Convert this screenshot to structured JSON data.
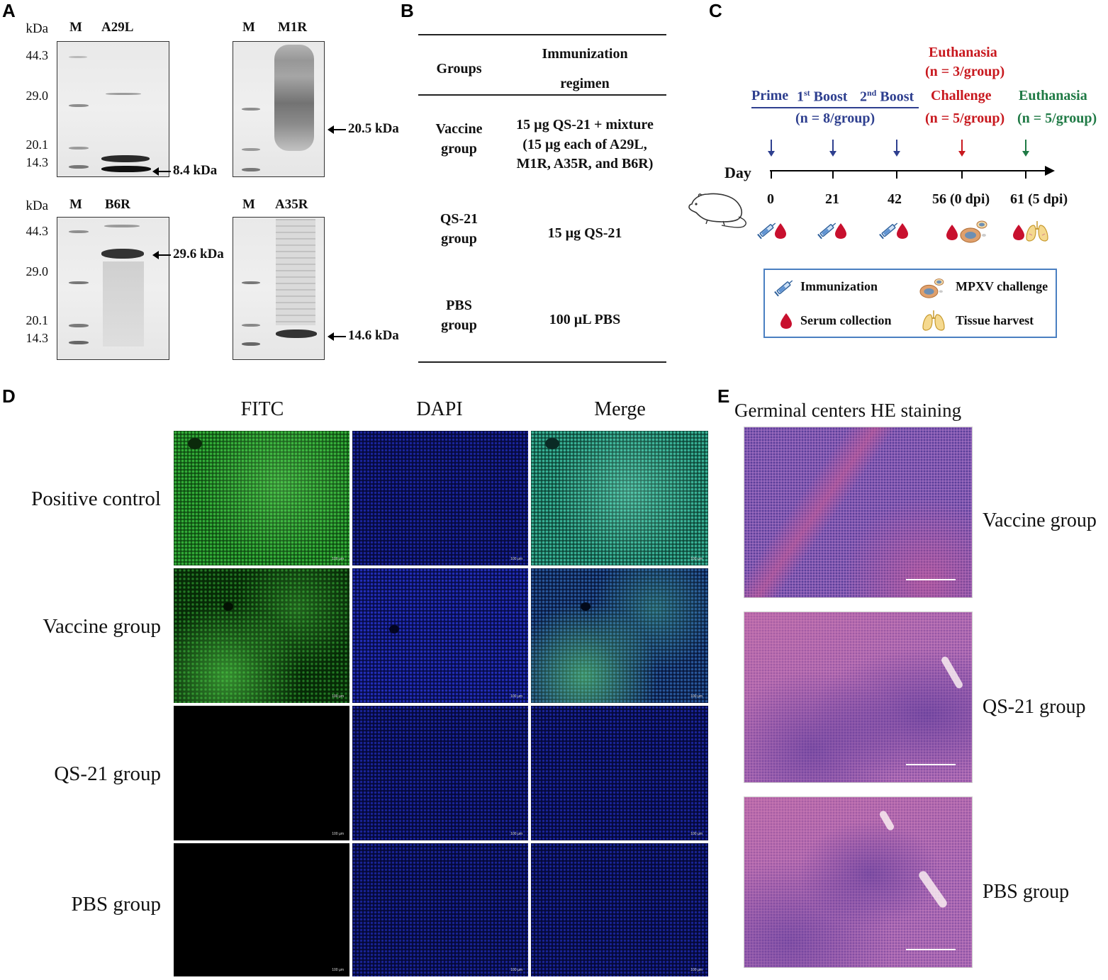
{
  "panels": {
    "a": {
      "letter": "A",
      "kda": "kDa",
      "gels": [
        {
          "m": "M",
          "name": "A29L",
          "size": "8.4 kDa"
        },
        {
          "m": "M",
          "name": "M1R",
          "size": "20.5 kDa"
        },
        {
          "m": "M",
          "name": "B6R",
          "size": "29.6 kDa"
        },
        {
          "m": "M",
          "name": "A35R",
          "size": "14.6 kDa"
        }
      ],
      "markers": [
        "44.3",
        "29.0",
        "20.1",
        "14.3"
      ]
    },
    "b": {
      "letter": "B",
      "col_groups": "Groups",
      "col_regimen_1": "Immunization",
      "col_regimen_2": "regimen",
      "rows": [
        {
          "group_1": "Vaccine",
          "group_2": "group",
          "regimen_1": "15 µg QS-21 + mixture",
          "regimen_2": "(15 µg each of A29L,",
          "regimen_3": "M1R, A35R, and B6R)"
        },
        {
          "group_1": "QS-21",
          "group_2": "group",
          "regimen_1": "15 µg QS-21"
        },
        {
          "group_1": "PBS",
          "group_2": "group",
          "regimen_1": "100 µL PBS"
        }
      ]
    },
    "c": {
      "letter": "C",
      "prime": "Prime",
      "boost1_pre": "1",
      "boost1_sup": "st",
      "boost1_post": " Boost",
      "boost2_pre": "2",
      "boost2_sup": "nd",
      "boost2_post": " Boost",
      "n_immun": "(n = 8/group)",
      "euth1": "Euthanasia",
      "euth1_n": "(n = 3/group)",
      "challenge": "Challenge",
      "challenge_n": "(n = 5/group)",
      "euth2": "Euthanasia",
      "euth2_n": "(n = 5/group)",
      "day_label": "Day",
      "days": [
        "0",
        "21",
        "42",
        "56 (0 dpi)",
        "61 (5 dpi)"
      ],
      "legend": {
        "immunization": "Immunization",
        "challenge": "MPXV challenge",
        "serum": "Serum collection",
        "tissue": "Tissue harvest"
      },
      "colors": {
        "blue": "#2e3f8f",
        "red": "#c8181e",
        "green": "#1f7a45"
      }
    },
    "d": {
      "letter": "D",
      "columns": [
        "FITC",
        "DAPI",
        "Merge"
      ],
      "rows": [
        "Positive control",
        "Vaccine group",
        "QS-21 group",
        "PBS group"
      ],
      "scale_label": "100 µm"
    },
    "e": {
      "letter": "E",
      "title": "Germinal centers HE staining",
      "rows": [
        "Vaccine group",
        "QS-21 group",
        "PBS group"
      ]
    }
  }
}
